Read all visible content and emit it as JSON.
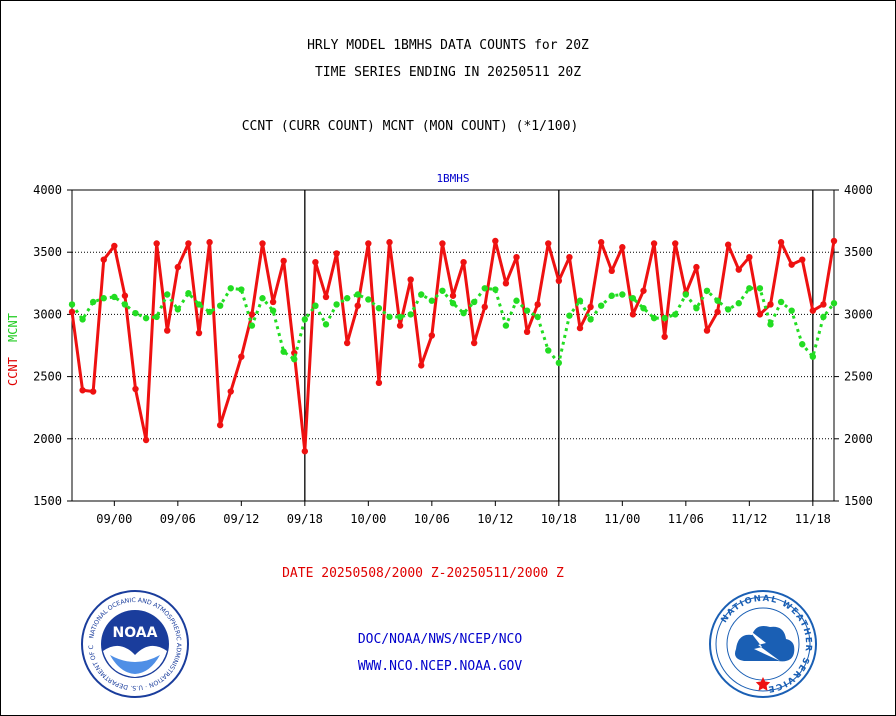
{
  "header": {
    "title_line1": "HRLY MODEL 1BMHS DATA COUNTS for 20Z",
    "title_line2": "TIME SERIES ENDING IN 20250511 20Z",
    "title_line3": "CCNT (CURR COUNT) MCNT (MON COUNT) (*1/100)"
  },
  "footer": {
    "date_range": "DATE 20250508/2000 Z-20250511/2000 Z",
    "link1": "DOC/NOAA/NWS/NCEP/NCO",
    "link2": "WWW.NCO.NCEP.NOAA.GOV"
  },
  "logos": {
    "noaa": {
      "center_text": "NOAA",
      "ring_text": "NATIONAL OCEANIC AND ATMOSPHERIC ADMINISTRATION · U.S. DEPARTMENT OF COMMERCE"
    },
    "nws": {
      "ring_text": "NATIONAL WEATHER SERVICE"
    }
  },
  "colors": {
    "ccnt": "#ee1111",
    "mcnt": "#22dd22",
    "axis": "#000000",
    "panel_label": "#0000cc",
    "noaa_blue": "#1a3d9c",
    "nws_blue": "#1a5fb4"
  },
  "chart_data": {
    "type": "line",
    "panel_label": "1BMHS",
    "ylabel_left": [
      "CCNT",
      "MCNT"
    ],
    "ylim": [
      1500,
      4000
    ],
    "yticks": [
      1500,
      2000,
      2500,
      3000,
      3500,
      4000
    ],
    "grid_lines_y": [
      2000,
      2500,
      3000,
      3500
    ],
    "x_tick_labels": [
      "09/00",
      "09/06",
      "09/12",
      "09/18",
      "10/00",
      "10/06",
      "10/12",
      "10/18",
      "11/00",
      "11/06",
      "11/12",
      "11/18"
    ],
    "x_tick_hours": [
      4,
      10,
      16,
      22,
      28,
      34,
      40,
      46,
      52,
      58,
      64,
      70
    ],
    "x_range_hours": [
      0,
      72
    ],
    "day_separators_hours": [
      22,
      46,
      70
    ],
    "series": [
      {
        "name": "CCNT",
        "values": [
          3020,
          2390,
          2380,
          3440,
          3550,
          3150,
          2400,
          1990,
          3570,
          2870,
          3380,
          3570,
          2850,
          3580,
          2110,
          2380,
          2660,
          3000,
          3570,
          3100,
          3430,
          2690,
          1900,
          3420,
          3140,
          3490,
          2770,
          3070,
          3570,
          2450,
          3580,
          2910,
          3280,
          2590,
          2830,
          3570,
          3150,
          3420,
          2770,
          3060,
          3590,
          3250,
          3460,
          2860,
          3080,
          3570,
          3270,
          3460,
          2890,
          3060,
          3580,
          3350,
          3540,
          3000,
          3190,
          3570,
          2820,
          3570,
          3170,
          3380,
          2870,
          3020,
          3560,
          3360,
          3460,
          3000,
          3080,
          3580,
          3400,
          3440,
          3030,
          3080,
          3590
        ]
      },
      {
        "name": "MCNT",
        "values": [
          3080,
          2960,
          3100,
          3130,
          3140,
          3080,
          3010,
          2970,
          2980,
          3160,
          3040,
          3170,
          3080,
          3020,
          3070,
          3210,
          3200,
          2910,
          3130,
          3030,
          2700,
          2640,
          2960,
          3070,
          2920,
          3080,
          3130,
          3160,
          3120,
          3050,
          2980,
          2980,
          3000,
          3160,
          3110,
          3190,
          3090,
          3010,
          3100,
          3210,
          3200,
          2910,
          3110,
          3030,
          2980,
          2710,
          2610,
          2990,
          3110,
          2960,
          3070,
          3150,
          3160,
          3130,
          3050,
          2970,
          2970,
          3000,
          3160,
          3050,
          3190,
          3110,
          3040,
          3090,
          3210,
          3210,
          2920,
          3100,
          3030,
          2760,
          2660,
          2980,
          3090
        ]
      }
    ]
  }
}
